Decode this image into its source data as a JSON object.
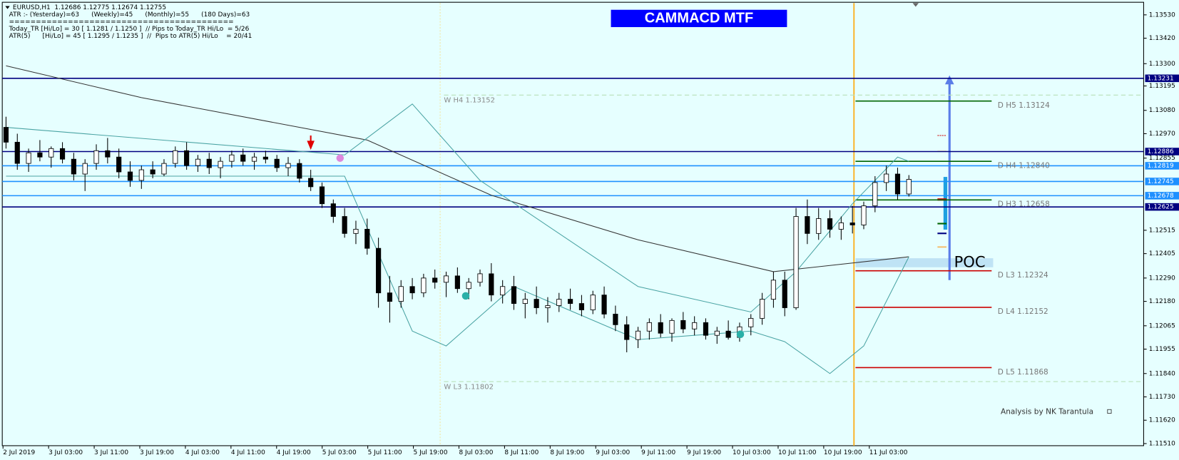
{
  "chart_data": {
    "type": "candlestick",
    "title": "CAMMACD MTF",
    "header": [
      "EURUSD,H1  1.12686 1.12775 1.12674 1.12755",
      "ATR :- (Yesterday)=63      (Weekly)=45      (Monthly)=55      (180 Days)=63",
      "==========================================",
      "Today_TR [Hi/Lo] = 30 [ 1.1281 / 1.1250 ]  // Pips to Today_TR Hi/Lo  = 5/26",
      "ATR(5)      [Hi/Lo] = 45 [ 1.1295 / 1.1235 ]  //  Pips to ATR(5) Hi/Lo    = 20/41"
    ],
    "footer": "Analysis by NK Tarantula",
    "poc_label": "POC",
    "x_labels": [
      "2 Jul 2019",
      "3 Jul 03:00",
      "3 Jul 11:00",
      "3 Jul 19:00",
      "4 Jul 03:00",
      "4 Jul 11:00",
      "4 Jul 19:00",
      "5 Jul 03:00",
      "5 Jul 11:00",
      "5 Jul 19:00",
      "8 Jul 03:00",
      "8 Jul 11:00",
      "8 Jul 19:00",
      "9 Jul 03:00",
      "9 Jul 11:00",
      "9 Jul 19:00",
      "10 Jul 03:00",
      "10 Jul 11:00",
      "10 Jul 19:00",
      "11 Jul 03:00"
    ],
    "ylim": [
      1.115,
      1.136
    ],
    "yticks": [
      {
        "value": 1.1353,
        "label": "1.13530"
      },
      {
        "value": 1.1342,
        "label": "1.13420"
      },
      {
        "value": 1.133,
        "label": "1.13300"
      },
      {
        "value": 1.13195,
        "label": "1.13195"
      },
      {
        "value": 1.1308,
        "label": "1.13080"
      },
      {
        "value": 1.1297,
        "label": "1.12970"
      },
      {
        "value": 1.12855,
        "label": "1.12855"
      },
      {
        "value": 1.12515,
        "label": "1.12515"
      },
      {
        "value": 1.12405,
        "label": "1.12405"
      },
      {
        "value": 1.1229,
        "label": "1.12290"
      },
      {
        "value": 1.1218,
        "label": "1.12180"
      },
      {
        "value": 1.12065,
        "label": "1.12065"
      },
      {
        "value": 1.11955,
        "label": "1.11955"
      },
      {
        "value": 1.1184,
        "label": "1.11840"
      },
      {
        "value": 1.1173,
        "label": "1.11730"
      },
      {
        "value": 1.1162,
        "label": "1.11620"
      },
      {
        "value": 1.1151,
        "label": "1.11510"
      }
    ],
    "bull_color": "#ffffff",
    "bear_color": "#000000",
    "candles": [
      [
        1.13,
        1.1305,
        1.129,
        1.1293
      ],
      [
        1.1293,
        1.1297,
        1.128,
        1.1283
      ],
      [
        1.1283,
        1.129,
        1.1279,
        1.1288
      ],
      [
        1.1288,
        1.1294,
        1.1284,
        1.1286
      ],
      [
        1.1286,
        1.1291,
        1.1281,
        1.129
      ],
      [
        1.129,
        1.1293,
        1.1283,
        1.1285
      ],
      [
        1.1285,
        1.1288,
        1.1275,
        1.1278
      ],
      [
        1.1278,
        1.1285,
        1.127,
        1.1283
      ],
      [
        1.1283,
        1.1292,
        1.128,
        1.1289
      ],
      [
        1.1289,
        1.1295,
        1.1283,
        1.1286
      ],
      [
        1.1286,
        1.129,
        1.1276,
        1.1279
      ],
      [
        1.1279,
        1.1284,
        1.1272,
        1.1275
      ],
      [
        1.1275,
        1.1282,
        1.1271,
        1.128
      ],
      [
        1.128,
        1.1284,
        1.1276,
        1.1278
      ],
      [
        1.1278,
        1.1285,
        1.1277,
        1.1283
      ],
      [
        1.1283,
        1.1291,
        1.1281,
        1.1289
      ],
      [
        1.1289,
        1.1293,
        1.128,
        1.1282
      ],
      [
        1.1282,
        1.1287,
        1.1279,
        1.1285
      ],
      [
        1.1285,
        1.1288,
        1.1278,
        1.1281
      ],
      [
        1.1281,
        1.1286,
        1.1276,
        1.1284
      ],
      [
        1.1284,
        1.1289,
        1.1281,
        1.1287
      ],
      [
        1.1287,
        1.129,
        1.1282,
        1.1284
      ],
      [
        1.1284,
        1.1288,
        1.128,
        1.1286
      ],
      [
        1.1286,
        1.1289,
        1.1283,
        1.1285
      ],
      [
        1.1285,
        1.1287,
        1.1279,
        1.1281
      ],
      [
        1.1281,
        1.1286,
        1.1277,
        1.1283
      ],
      [
        1.1283,
        1.1285,
        1.1274,
        1.1276
      ],
      [
        1.1276,
        1.128,
        1.127,
        1.1272
      ],
      [
        1.1272,
        1.1274,
        1.1262,
        1.1264
      ],
      [
        1.1264,
        1.1266,
        1.1255,
        1.1258
      ],
      [
        1.1258,
        1.1262,
        1.1248,
        1.125
      ],
      [
        1.125,
        1.1256,
        1.1245,
        1.1252
      ],
      [
        1.1252,
        1.1257,
        1.124,
        1.1243
      ],
      [
        1.1243,
        1.1248,
        1.1215,
        1.1222
      ],
      [
        1.1222,
        1.123,
        1.1208,
        1.1218
      ],
      [
        1.1218,
        1.1228,
        1.1215,
        1.1225
      ],
      [
        1.1225,
        1.1229,
        1.1219,
        1.1222
      ],
      [
        1.1222,
        1.1231,
        1.122,
        1.1229
      ],
      [
        1.1229,
        1.1233,
        1.1224,
        1.1227
      ],
      [
        1.1227,
        1.1232,
        1.122,
        1.123
      ],
      [
        1.123,
        1.1234,
        1.1222,
        1.1224
      ],
      [
        1.1224,
        1.1229,
        1.1219,
        1.1227
      ],
      [
        1.1227,
        1.1233,
        1.1225,
        1.1231
      ],
      [
        1.1231,
        1.1236,
        1.1218,
        1.1221
      ],
      [
        1.1221,
        1.1228,
        1.1217,
        1.1225
      ],
      [
        1.1225,
        1.123,
        1.1214,
        1.1217
      ],
      [
        1.1217,
        1.1222,
        1.121,
        1.1219
      ],
      [
        1.1219,
        1.1225,
        1.1212,
        1.1215
      ],
      [
        1.1215,
        1.122,
        1.1208,
        1.1216
      ],
      [
        1.1216,
        1.1222,
        1.1213,
        1.1219
      ],
      [
        1.1219,
        1.1224,
        1.1214,
        1.1217
      ],
      [
        1.1217,
        1.1221,
        1.1211,
        1.1214
      ],
      [
        1.1214,
        1.1223,
        1.1212,
        1.1221
      ],
      [
        1.1221,
        1.1225,
        1.121,
        1.1212
      ],
      [
        1.1212,
        1.1216,
        1.1204,
        1.1207
      ],
      [
        1.1207,
        1.1211,
        1.1194,
        1.12
      ],
      [
        1.12,
        1.1206,
        1.1196,
        1.1204
      ],
      [
        1.1204,
        1.121,
        1.12,
        1.1208
      ],
      [
        1.1208,
        1.1212,
        1.1201,
        1.1203
      ],
      [
        1.1203,
        1.121,
        1.1199,
        1.1209
      ],
      [
        1.1209,
        1.1213,
        1.1203,
        1.1205
      ],
      [
        1.1205,
        1.1211,
        1.1202,
        1.1208
      ],
      [
        1.1208,
        1.121,
        1.12,
        1.1202
      ],
      [
        1.1202,
        1.1206,
        1.1198,
        1.1204
      ],
      [
        1.1204,
        1.1209,
        1.12,
        1.1201
      ],
      [
        1.1201,
        1.1208,
        1.1199,
        1.1206
      ],
      [
        1.1206,
        1.1212,
        1.1202,
        1.121
      ],
      [
        1.121,
        1.1222,
        1.1207,
        1.1219
      ],
      [
        1.1219,
        1.1232,
        1.1215,
        1.1228
      ],
      [
        1.1228,
        1.1232,
        1.1211,
        1.1215
      ],
      [
        1.1215,
        1.1262,
        1.1214,
        1.1258
      ],
      [
        1.1258,
        1.1266,
        1.1245,
        1.125
      ],
      [
        1.125,
        1.1262,
        1.1247,
        1.1257
      ],
      [
        1.1257,
        1.1261,
        1.1248,
        1.1252
      ],
      [
        1.1252,
        1.1258,
        1.1247,
        1.1255
      ],
      [
        1.1255,
        1.1263,
        1.125,
        1.1254
      ],
      [
        1.1254,
        1.1265,
        1.1252,
        1.1263
      ],
      [
        1.1263,
        1.1277,
        1.126,
        1.1274
      ],
      [
        1.1274,
        1.1282,
        1.127,
        1.1278
      ],
      [
        1.1278,
        1.1281,
        1.1266,
        1.12686
      ],
      [
        1.12686,
        1.12775,
        1.12674,
        1.12755
      ]
    ],
    "lines": [
      {
        "color": "#333333",
        "x": [
          0,
          12,
          32,
          43,
          56,
          68,
          80
        ],
        "values": [
          1.1329,
          1.1314,
          1.1294,
          1.1268,
          1.1247,
          1.1232,
          1.1239
        ]
      },
      {
        "color": "#4aa3a3",
        "x": [
          0,
          30,
          36,
          42,
          56,
          66,
          70,
          75,
          79,
          80
        ],
        "values": [
          1.13,
          1.1287,
          1.1311,
          1.1275,
          1.1225,
          1.1213,
          1.1232,
          1.1264,
          1.1286,
          1.1284
        ]
      },
      {
        "color": "#4aa3a3",
        "x": [
          0,
          30,
          36,
          39,
          45,
          56,
          66,
          69,
          73,
          76,
          80
        ],
        "values": [
          1.1277,
          1.1277,
          1.1204,
          1.1197,
          1.1225,
          1.12,
          1.1204,
          1.1199,
          1.1184,
          1.1197,
          1.1239
        ]
      }
    ],
    "price_lines": [
      {
        "value": 1.13231,
        "label": "1.13231",
        "color": "#000080"
      },
      {
        "value": 1.12886,
        "label": "1.12886",
        "color": "#000080"
      },
      {
        "value": 1.12819,
        "label": "1.12819",
        "color": "#1e90ff"
      },
      {
        "value": 1.12745,
        "label": "1.12745",
        "color": "#1e90ff"
      },
      {
        "value": 1.12678,
        "label": "1.12678",
        "color": "#1e90ff"
      },
      {
        "value": 1.12625,
        "label": "1.12625",
        "color": "#000080"
      }
    ],
    "pivots": [
      {
        "value": 1.13124,
        "label": "D H5 1.13124",
        "color": "#006400"
      },
      {
        "value": 1.1284,
        "label": "D H4 1.12840",
        "color": "#006400"
      },
      {
        "value": 1.12658,
        "label": "D H3 1.12658",
        "color": "#006400"
      },
      {
        "value": 1.12324,
        "label": "D L3 1.12324",
        "color": "#cc0000"
      },
      {
        "value": 1.12152,
        "label": "D L4 1.12152",
        "color": "#cc0000"
      },
      {
        "value": 1.11868,
        "label": "D L5 1.11868",
        "color": "#cc0000"
      }
    ],
    "weekly": [
      {
        "value": 1.13152,
        "label": "W H4 1.13152"
      },
      {
        "value": 1.11802,
        "label": "W L3 1.11802"
      }
    ]
  }
}
